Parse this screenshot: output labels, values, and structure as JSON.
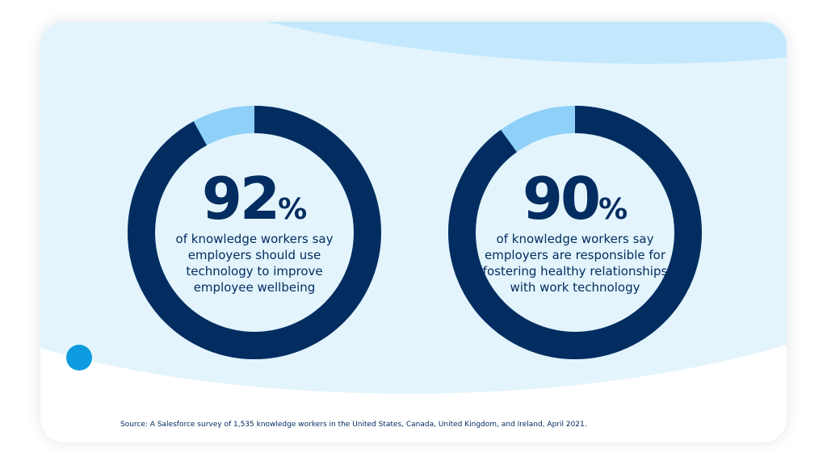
{
  "colors": {
    "dark": "#032d60",
    "light": "#8ed0f7",
    "background": "#e3f4fc",
    "wave": "#c3e8fd",
    "dot": "#0c9be0"
  },
  "chart_data": [
    {
      "type": "pie",
      "variant": "donut",
      "values": [
        92,
        8
      ],
      "value_label": "92",
      "unit": "%",
      "description": "of knowledge workers say employers should use technology to improve employee wellbeing"
    },
    {
      "type": "pie",
      "variant": "donut",
      "values": [
        90,
        10
      ],
      "value_label": "90",
      "unit": "%",
      "description": "of knowledge workers say employers are responsible for fostering healthy relationships with work technology"
    }
  ],
  "source": "Source: A Salesforce survey of 1,535 knowledge workers in the United States, Canada, United Kingdom, and Ireland, April 2021."
}
